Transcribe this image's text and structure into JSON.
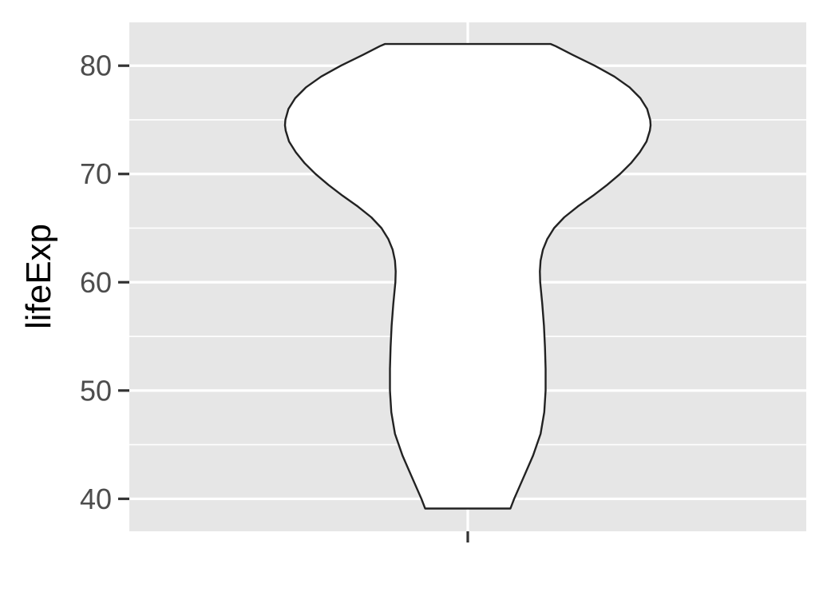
{
  "chart_data": {
    "type": "violin",
    "title": "",
    "xlabel": "",
    "ylabel": "lifeExp",
    "x_categories": [
      ""
    ],
    "ylim": [
      37,
      84
    ],
    "y_ticks": [
      40,
      50,
      60,
      70,
      80
    ],
    "y_minor_ticks": [
      45,
      55,
      65,
      75
    ],
    "grid": true,
    "legend": "none",
    "colors": {
      "panel_background": "#e6e6e6",
      "grid": "#ffffff",
      "violin_fill": "#ffffff",
      "violin_stroke": "#222222",
      "tick_mark": "#333333",
      "tick_label": "#4d4d4d"
    },
    "series": [
      {
        "density_profile": [
          {
            "y": 39.1,
            "half_width": 0.126
          },
          {
            "y": 40.0,
            "half_width": 0.137
          },
          {
            "y": 42.0,
            "half_width": 0.165
          },
          {
            "y": 44.0,
            "half_width": 0.193
          },
          {
            "y": 46.0,
            "half_width": 0.215
          },
          {
            "y": 48.0,
            "half_width": 0.226
          },
          {
            "y": 50.0,
            "half_width": 0.23
          },
          {
            "y": 52.0,
            "half_width": 0.23
          },
          {
            "y": 54.0,
            "half_width": 0.228
          },
          {
            "y": 56.0,
            "half_width": 0.225
          },
          {
            "y": 58.0,
            "half_width": 0.22
          },
          {
            "y": 60.0,
            "half_width": 0.214
          },
          {
            "y": 61.0,
            "half_width": 0.213
          },
          {
            "y": 62.0,
            "half_width": 0.215
          },
          {
            "y": 63.0,
            "half_width": 0.222
          },
          {
            "y": 64.0,
            "half_width": 0.235
          },
          {
            "y": 65.0,
            "half_width": 0.255
          },
          {
            "y": 66.0,
            "half_width": 0.285
          },
          {
            "y": 67.0,
            "half_width": 0.325
          },
          {
            "y": 68.0,
            "half_width": 0.37
          },
          {
            "y": 69.0,
            "half_width": 0.412
          },
          {
            "y": 70.0,
            "half_width": 0.45
          },
          {
            "y": 71.0,
            "half_width": 0.482
          },
          {
            "y": 72.0,
            "half_width": 0.508
          },
          {
            "y": 73.0,
            "half_width": 0.528
          },
          {
            "y": 74.0,
            "half_width": 0.538
          },
          {
            "y": 74.5,
            "half_width": 0.54
          },
          {
            "y": 75.0,
            "half_width": 0.539
          },
          {
            "y": 76.0,
            "half_width": 0.53
          },
          {
            "y": 77.0,
            "half_width": 0.51
          },
          {
            "y": 78.0,
            "half_width": 0.478
          },
          {
            "y": 79.0,
            "half_width": 0.433
          },
          {
            "y": 80.0,
            "half_width": 0.375
          },
          {
            "y": 81.0,
            "half_width": 0.31
          },
          {
            "y": 81.8,
            "half_width": 0.26
          },
          {
            "y": 82.0,
            "half_width": 0.245
          }
        ]
      }
    ]
  }
}
